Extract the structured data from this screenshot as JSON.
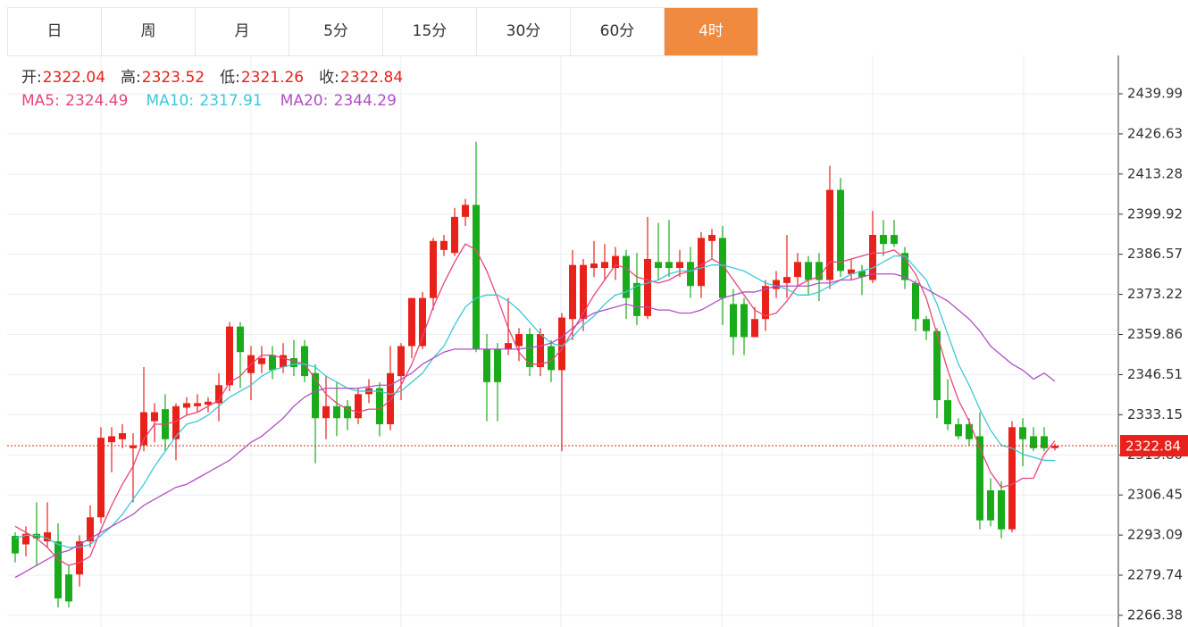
{
  "tabs": {
    "items": [
      "日",
      "周",
      "月",
      "5分",
      "15分",
      "30分",
      "60分",
      "4时"
    ],
    "active": 7
  },
  "chart_data": {
    "type": "candlestick",
    "open_label": "开:",
    "high_label": "高:",
    "low_label": "低:",
    "close_label": "收:",
    "up_color": "#e8211a",
    "down_color": "#1aab1a",
    "open": [
      2292.8,
      2290,
      2293.5,
      2291,
      2291,
      2280,
      2280,
      2291,
      2299,
      2324,
      2325,
      2322,
      2323,
      2331,
      2335,
      2325,
      2335.5,
      2336,
      2336.5,
      2337,
      2343,
      2362.5,
      2347,
      2350,
      2353,
      2349,
      2352,
      2356,
      2347,
      2332,
      2336,
      2336,
      2332,
      2340,
      2342,
      2330,
      2346,
      2356,
      2356,
      2372,
      2388,
      2387,
      2399,
      2403,
      2355,
      2355,
      2355,
      2356,
      2360,
      2349,
      2356,
      2348,
      2365,
      2365,
      2382,
      2382,
      2382,
      2386,
      2377,
      2366,
      2384,
      2384,
      2382,
      2384,
      2376,
      2391,
      2392,
      2370,
      2370,
      2359,
      2365,
      2375,
      2377,
      2379,
      2384,
      2384,
      2378,
      2408,
      2380,
      2381,
      2378,
      2393,
      2393,
      2387,
      2377,
      2365,
      2361,
      2338,
      2330,
      2330,
      2326,
      2308,
      2308,
      2295,
      2329,
      2326,
      2326,
      2322.04
    ],
    "high": [
      2294,
      2296,
      2304,
      2304,
      2297,
      2283,
      2293,
      2303,
      2329,
      2329,
      2330,
      2327,
      2349,
      2337,
      2340,
      2337,
      2339,
      2340,
      2339,
      2347,
      2364,
      2364,
      2356,
      2356,
      2356,
      2357,
      2358,
      2358,
      2350,
      2346,
      2344,
      2338,
      2342,
      2345,
      2344,
      2356,
      2357,
      2372,
      2374,
      2392,
      2393,
      2402,
      2405,
      2424,
      2360,
      2357,
      2372,
      2362,
      2362,
      2362,
      2358,
      2367,
      2388,
      2385,
      2391,
      2390,
      2389,
      2388,
      2387,
      2399,
      2397,
      2398,
      2388,
      2389,
      2394,
      2395,
      2396,
      2375,
      2372,
      2369,
      2378,
      2381,
      2393,
      2387,
      2386,
      2387,
      2416,
      2412,
      2385,
      2383,
      2401,
      2398,
      2398,
      2389,
      2378,
      2366,
      2362,
      2345,
      2332,
      2332,
      2334,
      2312,
      2311,
      2331,
      2332,
      2329,
      2329,
      2323.52
    ],
    "low": [
      2284,
      2286,
      2283,
      2289,
      2269,
      2269,
      2276,
      2289,
      2297,
      2314,
      2322,
      2304,
      2321,
      2324,
      2321,
      2318,
      2333,
      2334,
      2334,
      2331,
      2341,
      2342,
      2338,
      2347,
      2345,
      2347,
      2346,
      2344,
      2317,
      2325,
      2326,
      2328,
      2330,
      2337,
      2326,
      2328,
      2338,
      2352,
      2355,
      2368,
      2386,
      2386,
      2396,
      2354,
      2331,
      2331,
      2353,
      2351,
      2346,
      2346,
      2344,
      2321,
      2358,
      2361,
      2379,
      2378,
      2378,
      2365,
      2363,
      2365,
      2378,
      2379,
      2379,
      2372,
      2372,
      2385,
      2363,
      2353,
      2353,
      2359,
      2361,
      2372,
      2372,
      2376,
      2373,
      2371,
      2375,
      2379,
      2378,
      2373,
      2377,
      2386,
      2389,
      2375,
      2361,
      2358,
      2332,
      2328,
      2325,
      2323,
      2295,
      2296,
      2292,
      2294,
      2316,
      2321,
      2321,
      2321.26
    ],
    "close": [
      2287,
      2293.5,
      2292,
      2294,
      2272,
      2271,
      2291,
      2299,
      2325.5,
      2326,
      2327,
      2323,
      2334,
      2334,
      2325,
      2336,
      2337,
      2337,
      2337.5,
      2343,
      2362.5,
      2354,
      2353,
      2352,
      2348,
      2353,
      2349,
      2346,
      2332,
      2336,
      2332,
      2332,
      2340,
      2342,
      2330,
      2347,
      2356,
      2372,
      2372,
      2391,
      2391,
      2399,
      2403,
      2355,
      2344,
      2344,
      2357,
      2360,
      2349,
      2360,
      2348,
      2365.5,
      2383,
      2383,
      2383.5,
      2384,
      2386,
      2372,
      2366,
      2385,
      2382,
      2382,
      2384,
      2376,
      2392,
      2393,
      2372,
      2359,
      2359,
      2365,
      2376,
      2378,
      2379,
      2384,
      2378,
      2378,
      2408,
      2381,
      2381.5,
      2379,
      2393,
      2390,
      2390,
      2378,
      2365,
      2361,
      2338,
      2330,
      2326,
      2325,
      2298,
      2298,
      2295,
      2329,
      2325,
      2322,
      2322,
      2322.84
    ],
    "series": [
      {
        "name": "MA5",
        "color": "#e8457a",
        "values": [
          2296,
          2294,
          2292,
          2289,
          2285,
          2283,
          2284,
          2286,
          2295,
          2303,
          2310,
          2316,
          2325,
          2330,
          2330,
          2331,
          2333,
          2334,
          2336,
          2338,
          2344,
          2346,
          2350,
          2353,
          2353,
          2352,
          2351,
          2350,
          2345,
          2340,
          2337,
          2335,
          2334,
          2335,
          2335,
          2338,
          2343,
          2350,
          2359,
          2369,
          2377,
          2384,
          2390,
          2388,
          2381,
          2372,
          2362,
          2354,
          2350,
          2350,
          2351,
          2355,
          2361,
          2367,
          2373,
          2378,
          2383,
          2382,
          2379,
          2378,
          2377,
          2378,
          2380,
          2381,
          2383,
          2385,
          2383,
          2378,
          2373,
          2368,
          2366,
          2367,
          2371,
          2376,
          2378,
          2379,
          2384,
          2384,
          2385,
          2386,
          2387,
          2387,
          2388,
          2385,
          2380,
          2372,
          2360,
          2348,
          2338,
          2331,
          2322,
          2314,
          2309,
          2310,
          2312,
          2312,
          2320,
          2324.49
        ]
      },
      {
        "name": "MA10",
        "color": "#3cc8d6",
        "values": [
          2292,
          2293,
          2293,
          2292,
          2290,
          2289,
          2289,
          2290,
          2293,
          2296,
          2300,
          2305,
          2310,
          2316,
          2321,
          2326,
          2330,
          2331,
          2333,
          2336,
          2339,
          2341,
          2343,
          2346,
          2348,
          2349,
          2350,
          2350,
          2349,
          2346,
          2344,
          2342,
          2341,
          2341,
          2341,
          2340,
          2341,
          2344,
          2347,
          2352,
          2356,
          2363,
          2369,
          2372,
          2373,
          2373,
          2371,
          2368,
          2364,
          2360,
          2357,
          2356,
          2359,
          2363,
          2366,
          2370,
          2373,
          2374,
          2376,
          2377,
          2378,
          2380,
          2381,
          2381,
          2382,
          2383,
          2383,
          2382,
          2381,
          2379,
          2377,
          2376,
          2375,
          2373,
          2373,
          2374,
          2376,
          2378,
          2380,
          2381,
          2382,
          2384,
          2386,
          2386,
          2382,
          2378,
          2370,
          2360,
          2350,
          2343,
          2335,
          2328,
          2323,
          2322,
          2320,
          2319,
          2318,
          2317.91
        ]
      },
      {
        "name": "MA20",
        "color": "#b04fc4",
        "values": [
          2279,
          2281,
          2283,
          2285,
          2287,
          2288,
          2290,
          2292,
          2294,
          2296,
          2298,
          2300,
          2303,
          2305,
          2307,
          2309,
          2310,
          2312,
          2314,
          2316,
          2318,
          2321,
          2324,
          2326,
          2329,
          2332,
          2336,
          2339,
          2341,
          2342,
          2342,
          2342,
          2342,
          2342.5,
          2343,
          2343,
          2345,
          2347,
          2350,
          2352,
          2354,
          2355,
          2355,
          2355,
          2355,
          2355,
          2355,
          2355,
          2355.5,
          2356,
          2357,
          2359,
          2362,
          2365,
          2367,
          2368,
          2369,
          2370,
          2369,
          2369,
          2368,
          2368,
          2367,
          2367,
          2368,
          2370,
          2372,
          2373,
          2374,
          2374,
          2375,
          2376,
          2376,
          2376,
          2376,
          2377,
          2377,
          2378,
          2378,
          2379,
          2380,
          2380,
          2380,
          2379,
          2377,
          2375,
          2373,
          2371,
          2368,
          2365,
          2361,
          2356,
          2353,
          2350,
          2348,
          2345,
          2347,
          2344.29
        ]
      }
    ],
    "ylim": [
      2262.5,
      2452.77
    ],
    "yticks": [
      2439.99,
      2426.63,
      2413.28,
      2399.92,
      2386.57,
      2373.22,
      2359.86,
      2346.51,
      2333.15,
      {
        "value": 2319.8,
        "label": "2319.80"
      },
      2306.45,
      2293.09,
      2279.74,
      2266.38
    ],
    "grid": true
  }
}
